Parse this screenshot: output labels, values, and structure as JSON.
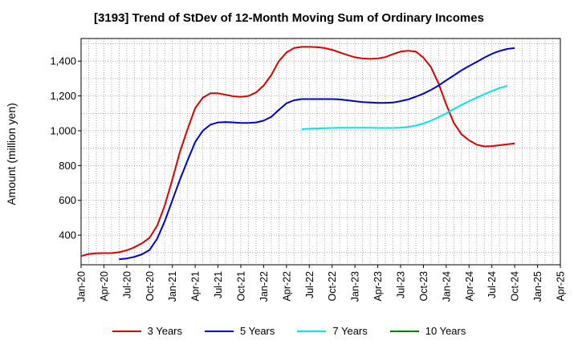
{
  "chart_data": {
    "type": "line",
    "title": "[3193]  Trend of StDev of 12-Month Moving Sum of Ordinary Incomes",
    "xlabel": "",
    "ylabel": "Amount (million yen)",
    "x_ticks": [
      "Jan-20",
      "Apr-20",
      "Jul-20",
      "Oct-20",
      "Jan-21",
      "Apr-21",
      "Jul-21",
      "Oct-21",
      "Jan-22",
      "Apr-22",
      "Jul-22",
      "Oct-22",
      "Jan-23",
      "Apr-23",
      "Jul-23",
      "Oct-23",
      "Jan-24",
      "Apr-24",
      "Jul-24",
      "Oct-24",
      "Jan-25",
      "Apr-25"
    ],
    "y_ticks": [
      400,
      600,
      800,
      1000,
      1200,
      1400
    ],
    "ylim": [
      230,
      1530
    ],
    "grid": true,
    "legend_position": "bottom",
    "series": [
      {
        "name": "3 Years",
        "color": "#dd0000",
        "start": "Jan-20",
        "values": [
          280,
          292,
          296,
          297,
          297,
          302,
          313,
          330,
          353,
          385,
          455,
          570,
          720,
          880,
          1010,
          1130,
          1190,
          1215,
          1215,
          1207,
          1198,
          1195,
          1200,
          1220,
          1260,
          1320,
          1400,
          1450,
          1475,
          1482,
          1482,
          1480,
          1475,
          1465,
          1450,
          1435,
          1422,
          1415,
          1413,
          1415,
          1423,
          1440,
          1455,
          1460,
          1455,
          1420,
          1365,
          1270,
          1150,
          1045,
          980,
          945,
          920,
          910,
          912,
          917,
          922,
          927
        ]
      },
      {
        "name": "5 Years",
        "color": "#0000cc",
        "start": "Jun-20",
        "values": [
          262,
          266,
          275,
          290,
          315,
          380,
          480,
          600,
          720,
          830,
          935,
          1000,
          1035,
          1048,
          1050,
          1048,
          1045,
          1045,
          1048,
          1058,
          1080,
          1120,
          1158,
          1175,
          1182,
          1182,
          1182,
          1182,
          1182,
          1180,
          1175,
          1170,
          1165,
          1162,
          1160,
          1160,
          1162,
          1170,
          1180,
          1196,
          1213,
          1235,
          1260,
          1290,
          1318,
          1347,
          1372,
          1395,
          1420,
          1442,
          1458,
          1470,
          1475
        ]
      },
      {
        "name": "7 Years",
        "color": "#00e5e5",
        "start": "Jun-22",
        "values": [
          1008,
          1012,
          1013,
          1015,
          1016,
          1017,
          1017,
          1017,
          1017,
          1017,
          1016,
          1016,
          1016,
          1018,
          1022,
          1030,
          1042,
          1058,
          1078,
          1100,
          1125,
          1148,
          1170,
          1190,
          1210,
          1228,
          1245,
          1258
        ]
      },
      {
        "name": "10 Years",
        "color": "#008000",
        "start": "Jan-20",
        "values": []
      }
    ]
  }
}
